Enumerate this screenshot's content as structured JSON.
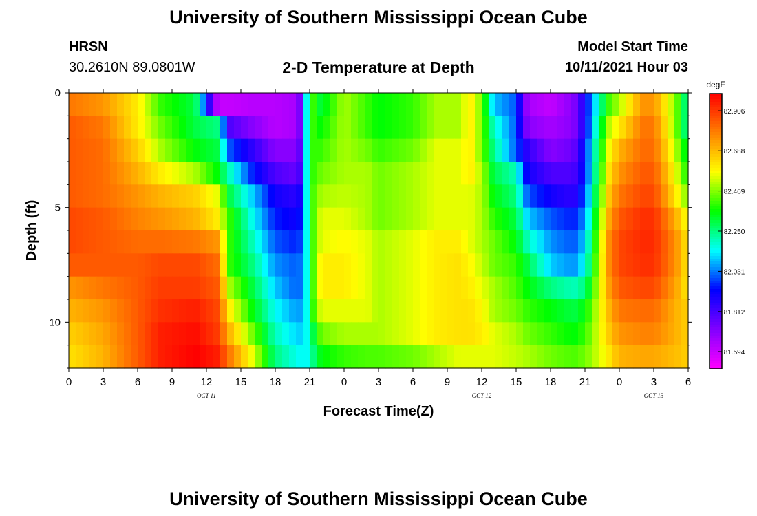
{
  "header": {
    "title": "University of Southern Mississippi Ocean Cube",
    "station": "HRSN",
    "coords": "30.2610N  89.0801W",
    "plot_title": "2-D Temperature at Depth",
    "model_label": "Model Start Time",
    "model_time": "10/11/2021 Hour 03"
  },
  "footer": {
    "title": "University of Southern Mississippi Ocean Cube"
  },
  "colors": {
    "stops": [
      "#ff00ff",
      "#8000ff",
      "#0000ff",
      "#00ffff",
      "#00ff00",
      "#ffff00",
      "#ff8000",
      "#ff0000"
    ]
  },
  "chart_data": {
    "type": "heatmap",
    "title": "2-D Temperature at Depth",
    "xlabel": "Forecast Time(Z)",
    "ylabel": "Depth (ft)",
    "x_ticks": [
      "0",
      "3",
      "6",
      "9",
      "12",
      "15",
      "18",
      "21",
      "0",
      "3",
      "6",
      "9",
      "12",
      "15",
      "18",
      "21",
      "0",
      "3",
      "6"
    ],
    "date_labels": [
      {
        "hour": 12,
        "text": "OCT  11"
      },
      {
        "hour": 36,
        "text": "OCT  12"
      },
      {
        "hour": 51,
        "text": "OCT  13"
      }
    ],
    "x_range_hours": [
      0,
      54
    ],
    "y_range_ft": [
      0,
      12
    ],
    "y_ticks": [
      "0",
      "5",
      "10"
    ],
    "colorbar": {
      "unit": "degF",
      "labels": [
        "82.906",
        "82.688",
        "82.469",
        "82.250",
        "82.031",
        "81.812",
        "81.594"
      ],
      "range": [
        81.5,
        83.0
      ]
    },
    "depth_ft": [
      0.5,
      1.5,
      2.5,
      3.5,
      4.5,
      5.5,
      6.5,
      7.5,
      8.5,
      9.5,
      10.5,
      11.5
    ],
    "keyframe_hours": [
      0,
      3,
      6,
      8,
      11,
      13,
      14,
      16,
      18,
      20,
      20.7,
      21.3,
      22,
      24,
      26,
      27,
      30,
      32,
      34,
      35,
      36,
      37,
      39,
      40,
      42,
      44,
      45,
      47,
      48,
      50,
      51,
      53,
      54
    ],
    "temperature_degF": [
      [
        82.8,
        82.75,
        82.6,
        82.4,
        82.3,
        81.6,
        81.6,
        81.62,
        81.62,
        81.65,
        82.15,
        82.4,
        82.3,
        82.5,
        82.4,
        82.35,
        82.4,
        82.5,
        82.5,
        82.6,
        82.45,
        82.1,
        82.0,
        81.65,
        81.6,
        81.7,
        81.9,
        82.4,
        82.5,
        82.75,
        82.75,
        82.45,
        82.2
      ],
      [
        82.85,
        82.8,
        82.6,
        82.45,
        82.3,
        82.25,
        81.8,
        81.7,
        81.62,
        81.65,
        82.15,
        82.4,
        82.35,
        82.5,
        82.4,
        82.35,
        82.4,
        82.5,
        82.5,
        82.6,
        82.45,
        82.2,
        82.0,
        81.7,
        81.65,
        81.7,
        81.9,
        82.5,
        82.6,
        82.8,
        82.8,
        82.45,
        82.2
      ],
      [
        82.85,
        82.82,
        82.65,
        82.5,
        82.35,
        82.3,
        82.0,
        81.85,
        81.7,
        81.7,
        82.15,
        82.4,
        82.4,
        82.5,
        82.45,
        82.4,
        82.45,
        82.55,
        82.55,
        82.6,
        82.45,
        82.25,
        82.0,
        81.85,
        81.7,
        81.75,
        81.95,
        82.55,
        82.7,
        82.82,
        82.82,
        82.5,
        82.3
      ],
      [
        82.85,
        82.82,
        82.7,
        82.6,
        82.5,
        82.35,
        82.2,
        81.95,
        81.8,
        81.75,
        82.15,
        82.4,
        82.45,
        82.5,
        82.5,
        82.45,
        82.5,
        82.55,
        82.55,
        82.6,
        82.5,
        82.3,
        82.2,
        81.9,
        81.8,
        81.8,
        81.95,
        82.6,
        82.75,
        82.85,
        82.85,
        82.55,
        82.35
      ],
      [
        82.85,
        82.82,
        82.75,
        82.7,
        82.65,
        82.55,
        82.3,
        82.1,
        81.9,
        81.85,
        82.15,
        82.42,
        82.5,
        82.52,
        82.5,
        82.45,
        82.5,
        82.55,
        82.55,
        82.55,
        82.5,
        82.35,
        82.25,
        82.0,
        81.9,
        81.85,
        82.0,
        82.65,
        82.8,
        82.88,
        82.88,
        82.6,
        82.45
      ],
      [
        82.88,
        82.85,
        82.78,
        82.75,
        82.7,
        82.6,
        82.4,
        82.15,
        81.95,
        81.9,
        82.15,
        82.42,
        82.55,
        82.55,
        82.5,
        82.45,
        82.5,
        82.55,
        82.55,
        82.55,
        82.5,
        82.4,
        82.3,
        82.1,
        82.0,
        81.95,
        82.05,
        82.7,
        82.85,
        82.92,
        82.92,
        82.7,
        82.55
      ],
      [
        82.88,
        82.85,
        82.82,
        82.82,
        82.8,
        82.75,
        82.4,
        82.2,
        82.0,
        81.95,
        82.15,
        82.42,
        82.55,
        82.58,
        82.55,
        82.5,
        82.55,
        82.6,
        82.6,
        82.55,
        82.5,
        82.45,
        82.35,
        82.2,
        82.05,
        82.0,
        82.1,
        82.75,
        82.88,
        82.93,
        82.93,
        82.75,
        82.6
      ],
      [
        82.85,
        82.85,
        82.85,
        82.88,
        82.88,
        82.82,
        82.4,
        82.25,
        82.05,
        82.0,
        82.15,
        82.42,
        82.6,
        82.6,
        82.55,
        82.5,
        82.55,
        82.6,
        82.62,
        82.58,
        82.52,
        82.45,
        82.4,
        82.3,
        82.1,
        82.05,
        82.15,
        82.75,
        82.88,
        82.92,
        82.92,
        82.75,
        82.6
      ],
      [
        82.75,
        82.8,
        82.85,
        82.9,
        82.9,
        82.85,
        82.5,
        82.3,
        82.1,
        82.0,
        82.15,
        82.42,
        82.6,
        82.6,
        82.55,
        82.5,
        82.55,
        82.6,
        82.62,
        82.6,
        82.55,
        82.5,
        82.42,
        82.35,
        82.25,
        82.2,
        82.25,
        82.72,
        82.85,
        82.88,
        82.88,
        82.72,
        82.6
      ],
      [
        82.7,
        82.75,
        82.85,
        82.92,
        82.95,
        82.88,
        82.6,
        82.35,
        82.15,
        82.05,
        82.15,
        82.4,
        82.55,
        82.55,
        82.55,
        82.5,
        82.55,
        82.6,
        82.62,
        82.62,
        82.58,
        82.5,
        82.45,
        82.4,
        82.35,
        82.3,
        82.35,
        82.68,
        82.8,
        82.82,
        82.82,
        82.7,
        82.65
      ],
      [
        82.65,
        82.72,
        82.85,
        82.95,
        82.98,
        82.9,
        82.7,
        82.45,
        82.2,
        82.1,
        82.15,
        82.3,
        82.45,
        82.5,
        82.5,
        82.5,
        82.55,
        82.6,
        82.62,
        82.62,
        82.6,
        82.55,
        82.5,
        82.45,
        82.4,
        82.35,
        82.4,
        82.65,
        82.75,
        82.78,
        82.78,
        82.7,
        82.65
      ],
      [
        82.62,
        82.7,
        82.85,
        82.95,
        83.0,
        82.95,
        82.8,
        82.55,
        82.25,
        82.15,
        82.15,
        82.25,
        82.35,
        82.4,
        82.42,
        82.42,
        82.45,
        82.5,
        82.55,
        82.55,
        82.55,
        82.55,
        82.52,
        82.5,
        82.45,
        82.42,
        82.45,
        82.6,
        82.7,
        82.72,
        82.72,
        82.68,
        82.65
      ]
    ]
  }
}
